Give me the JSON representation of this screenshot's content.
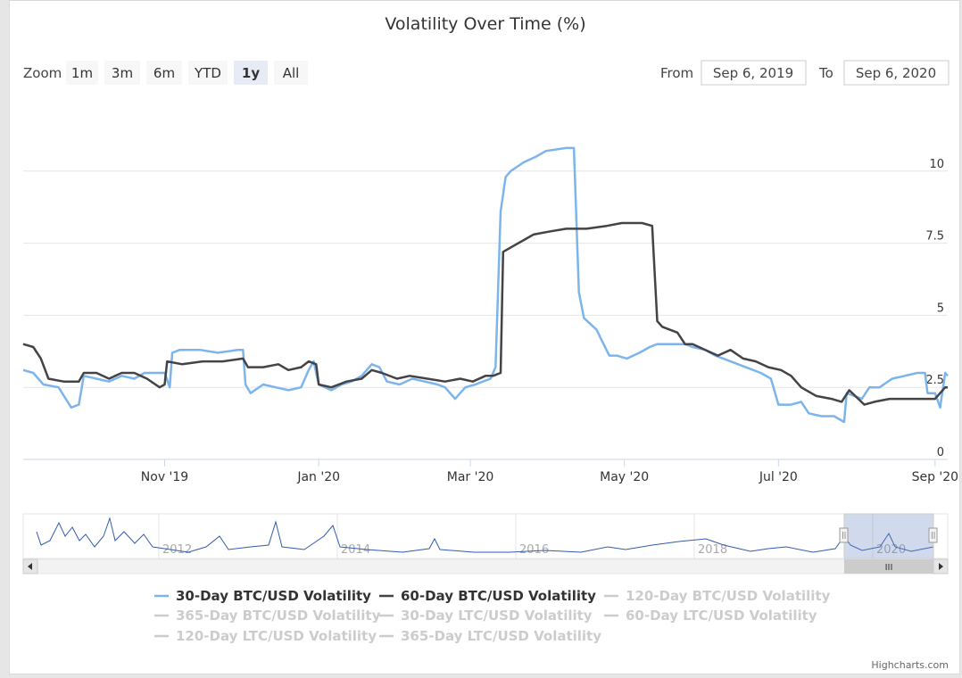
{
  "title": "Volatility Over Time (%)",
  "range_selector": {
    "zoom_label": "Zoom",
    "buttons": [
      "1m",
      "3m",
      "6m",
      "YTD",
      "1y",
      "All"
    ],
    "selected": "1y",
    "from_label": "From",
    "to_label": "To",
    "from_value": "Sep 6, 2019",
    "to_value": "Sep 6, 2020"
  },
  "credits": "Highcharts.com",
  "navigator": {
    "ticks": [
      "2012",
      "2014",
      "2016",
      "2018",
      "2020"
    ],
    "scrollbar_grip": "III"
  },
  "chart_data": {
    "type": "line",
    "title": "Volatility Over Time (%)",
    "x_range": [
      "2019-09-06",
      "2020-09-06"
    ],
    "x_ticks": [
      "Nov '19",
      "Jan '20",
      "Mar '20",
      "May '20",
      "Jul '20",
      "Sep '20"
    ],
    "y_ticks": [
      "0",
      "2.5",
      "5",
      "7.5",
      "10"
    ],
    "ylim": [
      0,
      12.5
    ],
    "grid": true,
    "legend_placement": "bottom",
    "legend": [
      {
        "name": "30-Day BTC/USD Volatility",
        "color": "#7cb5ec",
        "visible": true
      },
      {
        "name": "60-Day BTC/USD Volatility",
        "color": "#434348",
        "visible": true
      },
      {
        "name": "120-Day BTC/USD Volatility",
        "visible": false
      },
      {
        "name": "365-Day BTC/USD Volatility",
        "visible": false
      },
      {
        "name": "30-Day LTC/USD Volatility",
        "visible": false
      },
      {
        "name": "60-Day LTC/USD Volatility",
        "visible": false
      },
      {
        "name": "120-Day LTC/USD Volatility",
        "visible": false
      },
      {
        "name": "365-Day LTC/USD Volatility",
        "visible": false
      }
    ],
    "series": [
      {
        "name": "30-Day BTC/USD Volatility",
        "color": "#7cb5ec",
        "points": [
          [
            "2019-09-06",
            3.1
          ],
          [
            "2019-09-10",
            3.0
          ],
          [
            "2019-09-14",
            2.6
          ],
          [
            "2019-09-20",
            2.5
          ],
          [
            "2019-09-25",
            1.8
          ],
          [
            "2019-09-28",
            1.9
          ],
          [
            "2019-09-30",
            2.9
          ],
          [
            "2019-10-05",
            2.8
          ],
          [
            "2019-10-10",
            2.7
          ],
          [
            "2019-10-15",
            2.9
          ],
          [
            "2019-10-20",
            2.8
          ],
          [
            "2019-10-24",
            3.0
          ],
          [
            "2019-10-28",
            3.0
          ],
          [
            "2019-11-01",
            3.0
          ],
          [
            "2019-11-03",
            2.5
          ],
          [
            "2019-11-04",
            3.7
          ],
          [
            "2019-11-07",
            3.8
          ],
          [
            "2019-11-15",
            3.8
          ],
          [
            "2019-11-22",
            3.7
          ],
          [
            "2019-11-30",
            3.8
          ],
          [
            "2019-12-02",
            3.8
          ],
          [
            "2019-12-03",
            2.6
          ],
          [
            "2019-12-05",
            2.3
          ],
          [
            "2019-12-10",
            2.6
          ],
          [
            "2019-12-15",
            2.5
          ],
          [
            "2019-12-20",
            2.4
          ],
          [
            "2019-12-25",
            2.5
          ],
          [
            "2019-12-28",
            3.1
          ],
          [
            "2019-12-30",
            3.4
          ],
          [
            "2020-01-01",
            2.6
          ],
          [
            "2020-01-06",
            2.4
          ],
          [
            "2020-01-10",
            2.6
          ],
          [
            "2020-01-14",
            2.7
          ],
          [
            "2020-01-18",
            2.9
          ],
          [
            "2020-01-22",
            3.3
          ],
          [
            "2020-01-25",
            3.2
          ],
          [
            "2020-01-28",
            2.7
          ],
          [
            "2020-02-02",
            2.6
          ],
          [
            "2020-02-07",
            2.8
          ],
          [
            "2020-02-12",
            2.7
          ],
          [
            "2020-02-17",
            2.6
          ],
          [
            "2020-02-20",
            2.5
          ],
          [
            "2020-02-24",
            2.1
          ],
          [
            "2020-02-28",
            2.5
          ],
          [
            "2020-03-03",
            2.6
          ],
          [
            "2020-03-06",
            2.7
          ],
          [
            "2020-03-09",
            2.8
          ],
          [
            "2020-03-11",
            3.2
          ],
          [
            "2020-03-13",
            8.6
          ],
          [
            "2020-03-15",
            9.8
          ],
          [
            "2020-03-17",
            10.0
          ],
          [
            "2020-03-22",
            10.3
          ],
          [
            "2020-03-27",
            10.5
          ],
          [
            "2020-03-31",
            10.7
          ],
          [
            "2020-04-08",
            10.8
          ],
          [
            "2020-04-11",
            10.8
          ],
          [
            "2020-04-13",
            5.8
          ],
          [
            "2020-04-15",
            4.9
          ],
          [
            "2020-04-20",
            4.5
          ],
          [
            "2020-04-25",
            3.6
          ],
          [
            "2020-04-28",
            3.6
          ],
          [
            "2020-05-02",
            3.5
          ],
          [
            "2020-05-07",
            3.7
          ],
          [
            "2020-05-11",
            3.9
          ],
          [
            "2020-05-14",
            4.0
          ],
          [
            "2020-05-19",
            4.0
          ],
          [
            "2020-05-25",
            4.0
          ],
          [
            "2020-05-28",
            3.9
          ],
          [
            "2020-06-02",
            3.8
          ],
          [
            "2020-06-06",
            3.6
          ],
          [
            "2020-06-12",
            3.4
          ],
          [
            "2020-06-18",
            3.2
          ],
          [
            "2020-06-24",
            3.0
          ],
          [
            "2020-06-28",
            2.8
          ],
          [
            "2020-07-01",
            1.9
          ],
          [
            "2020-07-06",
            1.9
          ],
          [
            "2020-07-10",
            2.0
          ],
          [
            "2020-07-13",
            1.6
          ],
          [
            "2020-07-18",
            1.5
          ],
          [
            "2020-07-23",
            1.5
          ],
          [
            "2020-07-27",
            1.3
          ],
          [
            "2020-07-28",
            2.3
          ],
          [
            "2020-08-03",
            2.1
          ],
          [
            "2020-08-06",
            2.5
          ],
          [
            "2020-08-10",
            2.5
          ],
          [
            "2020-08-15",
            2.8
          ],
          [
            "2020-08-20",
            2.9
          ],
          [
            "2020-08-25",
            3.0
          ],
          [
            "2020-08-28",
            3.0
          ],
          [
            "2020-08-29",
            2.3
          ],
          [
            "2020-09-01",
            2.3
          ],
          [
            "2020-09-03",
            1.8
          ],
          [
            "2020-09-05",
            3.0
          ],
          [
            "2020-09-06",
            2.9
          ]
        ]
      },
      {
        "name": "60-Day BTC/USD Volatility",
        "color": "#434348",
        "points": [
          [
            "2019-09-06",
            4.0
          ],
          [
            "2019-09-10",
            3.9
          ],
          [
            "2019-09-13",
            3.5
          ],
          [
            "2019-09-16",
            2.8
          ],
          [
            "2019-09-22",
            2.7
          ],
          [
            "2019-09-28",
            2.7
          ],
          [
            "2019-09-30",
            3.0
          ],
          [
            "2019-10-05",
            3.0
          ],
          [
            "2019-10-10",
            2.8
          ],
          [
            "2019-10-15",
            3.0
          ],
          [
            "2019-10-20",
            3.0
          ],
          [
            "2019-10-25",
            2.8
          ],
          [
            "2019-10-30",
            2.5
          ],
          [
            "2019-11-01",
            2.6
          ],
          [
            "2019-11-02",
            3.4
          ],
          [
            "2019-11-08",
            3.3
          ],
          [
            "2019-11-16",
            3.4
          ],
          [
            "2019-11-24",
            3.4
          ],
          [
            "2019-12-02",
            3.5
          ],
          [
            "2019-12-04",
            3.2
          ],
          [
            "2019-12-10",
            3.2
          ],
          [
            "2019-12-16",
            3.3
          ],
          [
            "2019-12-20",
            3.1
          ],
          [
            "2019-12-25",
            3.2
          ],
          [
            "2019-12-28",
            3.4
          ],
          [
            "2019-12-31",
            3.3
          ],
          [
            "2020-01-01",
            2.6
          ],
          [
            "2020-01-06",
            2.5
          ],
          [
            "2020-01-12",
            2.7
          ],
          [
            "2020-01-18",
            2.8
          ],
          [
            "2020-01-22",
            3.1
          ],
          [
            "2020-01-26",
            3.0
          ],
          [
            "2020-02-01",
            2.8
          ],
          [
            "2020-02-06",
            2.9
          ],
          [
            "2020-02-13",
            2.8
          ],
          [
            "2020-02-20",
            2.7
          ],
          [
            "2020-02-26",
            2.8
          ],
          [
            "2020-03-02",
            2.7
          ],
          [
            "2020-03-07",
            2.9
          ],
          [
            "2020-03-10",
            2.9
          ],
          [
            "2020-03-13",
            3.0
          ],
          [
            "2020-03-14",
            7.2
          ],
          [
            "2020-03-18",
            7.4
          ],
          [
            "2020-03-22",
            7.6
          ],
          [
            "2020-03-26",
            7.8
          ],
          [
            "2020-04-01",
            7.9
          ],
          [
            "2020-04-08",
            8.0
          ],
          [
            "2020-04-16",
            8.0
          ],
          [
            "2020-04-24",
            8.1
          ],
          [
            "2020-04-30",
            8.2
          ],
          [
            "2020-05-08",
            8.2
          ],
          [
            "2020-05-12",
            8.1
          ],
          [
            "2020-05-14",
            4.8
          ],
          [
            "2020-05-16",
            4.6
          ],
          [
            "2020-05-22",
            4.4
          ],
          [
            "2020-05-25",
            4.0
          ],
          [
            "2020-05-28",
            4.0
          ],
          [
            "2020-06-02",
            3.8
          ],
          [
            "2020-06-07",
            3.6
          ],
          [
            "2020-06-12",
            3.8
          ],
          [
            "2020-06-17",
            3.5
          ],
          [
            "2020-06-22",
            3.4
          ],
          [
            "2020-06-27",
            3.2
          ],
          [
            "2020-07-02",
            3.1
          ],
          [
            "2020-07-06",
            2.9
          ],
          [
            "2020-07-10",
            2.5
          ],
          [
            "2020-07-16",
            2.2
          ],
          [
            "2020-07-22",
            2.1
          ],
          [
            "2020-07-26",
            2.0
          ],
          [
            "2020-07-29",
            2.4
          ],
          [
            "2020-08-04",
            1.9
          ],
          [
            "2020-08-08",
            2.0
          ],
          [
            "2020-08-14",
            2.1
          ],
          [
            "2020-08-20",
            2.1
          ],
          [
            "2020-08-26",
            2.1
          ],
          [
            "2020-09-01",
            2.1
          ],
          [
            "2020-09-05",
            2.5
          ],
          [
            "2020-09-06",
            2.5
          ]
        ]
      }
    ]
  }
}
